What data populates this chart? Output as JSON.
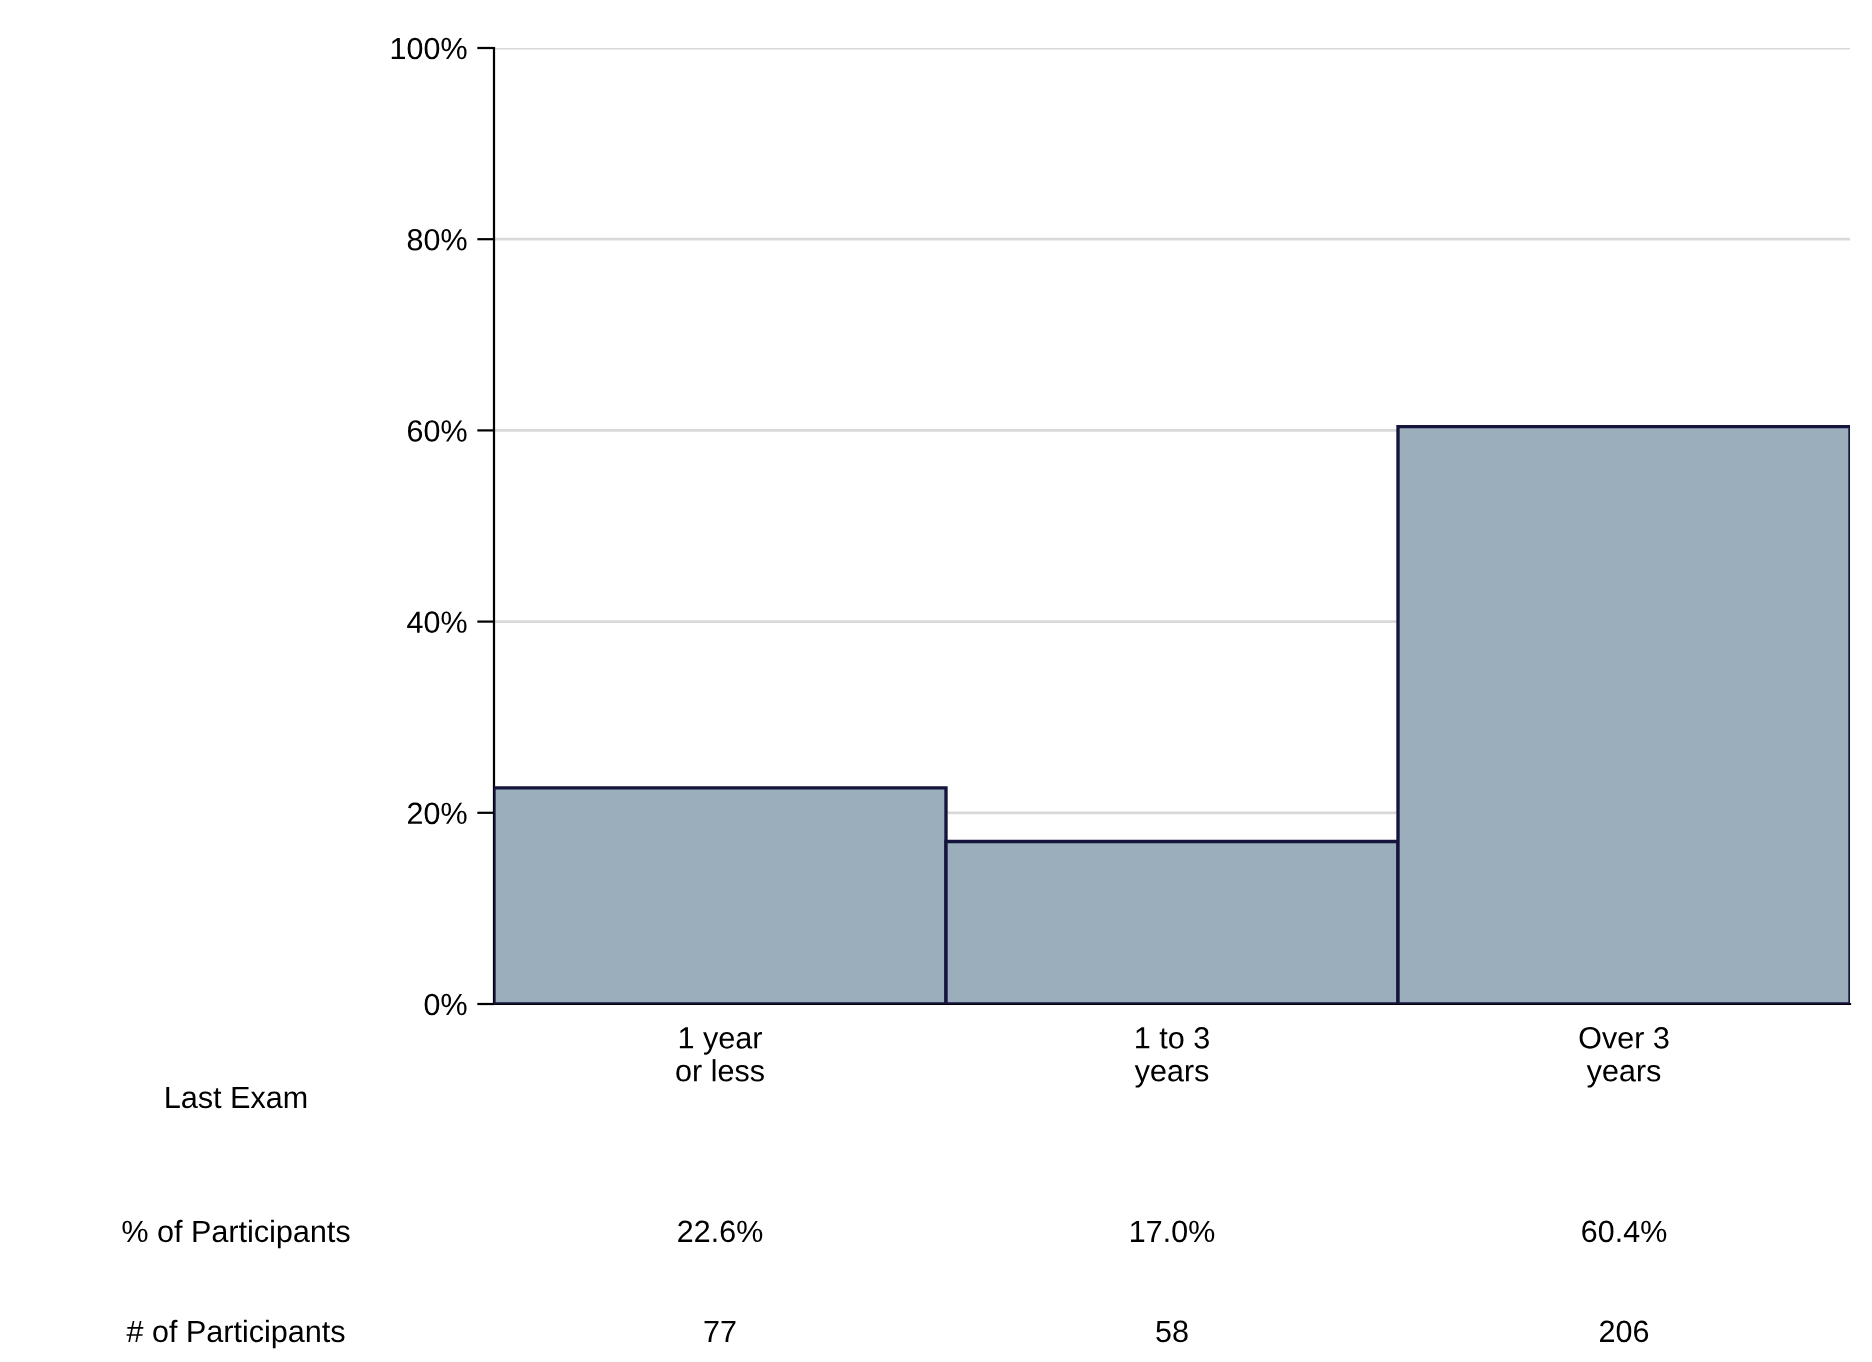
{
  "chart_data": {
    "type": "bar",
    "categories": [
      "1 year\nor less",
      "1 to 3\nyears",
      "Over 3\nyears"
    ],
    "values": [
      22.6,
      17.0,
      60.4
    ],
    "value_labels": [
      "22.6%",
      "17.0%",
      "60.4%"
    ],
    "color": "#9aaebb",
    "ylim": [
      0,
      100
    ],
    "yticks": [
      {
        "value": 0,
        "label": "0%"
      },
      {
        "value": 20,
        "label": "20%"
      },
      {
        "value": 40,
        "label": "40%"
      },
      {
        "value": 60,
        "label": "60%"
      },
      {
        "value": 80,
        "label": "80%"
      },
      {
        "value": 100,
        "label": "100%"
      }
    ],
    "grid": "y",
    "annotations": [
      "Last Exam",
      "% of Participants",
      "# of Participants",
      "77",
      "58",
      "206"
    ]
  }
}
